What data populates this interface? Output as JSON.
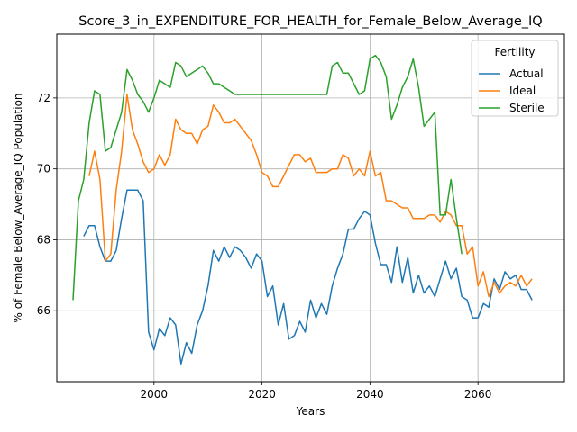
{
  "chart_data": {
    "type": "line",
    "title": "Score_3_in_EXPENDITURE_FOR_HEALTH_for_Female_Below_Average_IQ",
    "xlabel": "Years",
    "ylabel": "% of Female Below_Average_IQ Population",
    "xlim": [
      1982,
      2076
    ],
    "ylim": [
      64.0,
      73.8
    ],
    "xticks": [
      2000,
      2020,
      2040,
      2060
    ],
    "yticks": [
      66,
      68,
      70,
      72
    ],
    "grid": true,
    "legend": {
      "title": "Fertility",
      "position": "top-right"
    },
    "series": [
      {
        "name": "Actual",
        "color": "#1f77b4",
        "x": [
          1987,
          1988,
          1989,
          1990,
          1991,
          1992,
          1993,
          1994,
          1995,
          1996,
          1997,
          1998,
          1999,
          2000,
          2001,
          2002,
          2003,
          2004,
          2005,
          2006,
          2007,
          2008,
          2009,
          2010,
          2011,
          2012,
          2013,
          2014,
          2015,
          2016,
          2017,
          2018,
          2019,
          2020,
          2021,
          2022,
          2023,
          2024,
          2025,
          2026,
          2027,
          2028,
          2029,
          2030,
          2031,
          2032,
          2033,
          2034,
          2035,
          2036,
          2037,
          2038,
          2039,
          2040,
          2041,
          2042,
          2043,
          2044,
          2045,
          2046,
          2047,
          2048,
          2049,
          2050,
          2051,
          2052,
          2053,
          2054,
          2055,
          2056,
          2057,
          2058,
          2059,
          2060,
          2061,
          2062,
          2063,
          2064,
          2065,
          2066,
          2067,
          2068,
          2069,
          2070
        ],
        "values": [
          68.1,
          68.4,
          68.4,
          67.8,
          67.4,
          67.4,
          67.7,
          68.6,
          69.4,
          69.4,
          69.4,
          69.1,
          65.4,
          64.9,
          65.5,
          65.3,
          65.8,
          65.6,
          64.5,
          65.1,
          64.8,
          65.6,
          66.0,
          66.7,
          67.7,
          67.4,
          67.8,
          67.5,
          67.8,
          67.7,
          67.5,
          67.2,
          67.6,
          67.4,
          66.4,
          66.7,
          65.6,
          66.2,
          65.2,
          65.3,
          65.7,
          65.4,
          66.3,
          65.8,
          66.2,
          65.9,
          66.7,
          67.2,
          67.6,
          68.3,
          68.3,
          68.6,
          68.8,
          68.7,
          67.9,
          67.3,
          67.3,
          66.8,
          67.8,
          66.8,
          67.5,
          66.5,
          67.0,
          66.5,
          66.7,
          66.4,
          66.9,
          67.4,
          66.9,
          67.2,
          66.4,
          66.3,
          65.8,
          65.8,
          66.2,
          66.1,
          66.9,
          66.6,
          67.1,
          66.9,
          67.0,
          66.6,
          66.6,
          66.3
        ]
      },
      {
        "name": "Ideal",
        "color": "#ff7f0e",
        "x": [
          1988,
          1989,
          1990,
          1991,
          1992,
          1993,
          1994,
          1995,
          1996,
          1997,
          1998,
          1999,
          2000,
          2001,
          2002,
          2003,
          2004,
          2005,
          2006,
          2007,
          2008,
          2009,
          2010,
          2011,
          2012,
          2013,
          2014,
          2015,
          2016,
          2017,
          2018,
          2019,
          2020,
          2021,
          2022,
          2023,
          2024,
          2025,
          2026,
          2027,
          2028,
          2029,
          2030,
          2031,
          2032,
          2033,
          2034,
          2035,
          2036,
          2037,
          2038,
          2039,
          2040,
          2041,
          2042,
          2043,
          2044,
          2045,
          2046,
          2047,
          2048,
          2049,
          2050,
          2051,
          2052,
          2053,
          2054,
          2055,
          2056,
          2057,
          2058,
          2059,
          2060,
          2061,
          2062,
          2063,
          2064,
          2065,
          2066,
          2067,
          2068,
          2069,
          2070
        ],
        "values": [
          69.8,
          70.5,
          69.7,
          67.4,
          67.6,
          69.4,
          70.5,
          72.1,
          71.1,
          70.7,
          70.2,
          69.9,
          70.0,
          70.4,
          70.1,
          70.4,
          71.4,
          71.1,
          71.0,
          71.0,
          70.7,
          71.1,
          71.2,
          71.8,
          71.6,
          71.3,
          71.3,
          71.4,
          71.2,
          71.0,
          70.8,
          70.4,
          69.9,
          69.8,
          69.5,
          69.5,
          69.8,
          70.1,
          70.4,
          70.4,
          70.2,
          70.3,
          69.9,
          69.9,
          69.9,
          70.0,
          70.0,
          70.4,
          70.3,
          69.8,
          70.0,
          69.8,
          70.5,
          69.8,
          69.9,
          69.1,
          69.1,
          69.0,
          68.9,
          68.9,
          68.6,
          68.6,
          68.6,
          68.7,
          68.7,
          68.5,
          68.8,
          68.7,
          68.4,
          68.4,
          67.6,
          67.8,
          66.7,
          67.1,
          66.4,
          66.8,
          66.5,
          66.7,
          66.8,
          66.7,
          67.0,
          66.7,
          66.9
        ]
      },
      {
        "name": "Sterile",
        "color": "#2ca02c",
        "x": [
          1985,
          1986,
          1987,
          1988,
          1989,
          1990,
          1991,
          1992,
          1993,
          1994,
          1995,
          1996,
          1997,
          1998,
          1999,
          2000,
          2001,
          2002,
          2003,
          2004,
          2005,
          2006,
          2007,
          2008,
          2009,
          2010,
          2011,
          2012,
          2013,
          2014,
          2015,
          2016,
          2017,
          2018,
          2019,
          2020,
          2021,
          2022,
          2023,
          2024,
          2025,
          2026,
          2027,
          2028,
          2029,
          2030,
          2031,
          2032,
          2033,
          2034,
          2035,
          2036,
          2037,
          2038,
          2039,
          2040,
          2041,
          2042,
          2043,
          2044,
          2045,
          2046,
          2047,
          2048,
          2049,
          2050,
          2051,
          2052,
          2053,
          2054,
          2055,
          2056,
          2057
        ],
        "values": [
          66.3,
          69.1,
          69.7,
          71.3,
          72.2,
          72.1,
          70.5,
          70.6,
          71.1,
          71.6,
          72.8,
          72.5,
          72.1,
          71.9,
          71.6,
          72.0,
          72.5,
          72.4,
          72.3,
          73.0,
          72.9,
          72.6,
          72.7,
          72.8,
          72.9,
          72.7,
          72.4,
          72.4,
          72.3,
          72.2,
          72.1,
          72.1,
          72.1,
          72.1,
          72.1,
          72.1,
          72.1,
          72.1,
          72.1,
          72.1,
          72.1,
          72.1,
          72.1,
          72.1,
          72.1,
          72.1,
          72.1,
          72.1,
          72.9,
          73.0,
          72.7,
          72.7,
          72.4,
          72.1,
          72.2,
          73.1,
          73.2,
          73.0,
          72.6,
          71.4,
          71.8,
          72.3,
          72.6,
          73.1,
          72.3,
          71.2,
          71.4,
          71.6,
          68.7,
          68.7,
          69.7,
          68.6,
          67.6
        ]
      }
    ]
  }
}
